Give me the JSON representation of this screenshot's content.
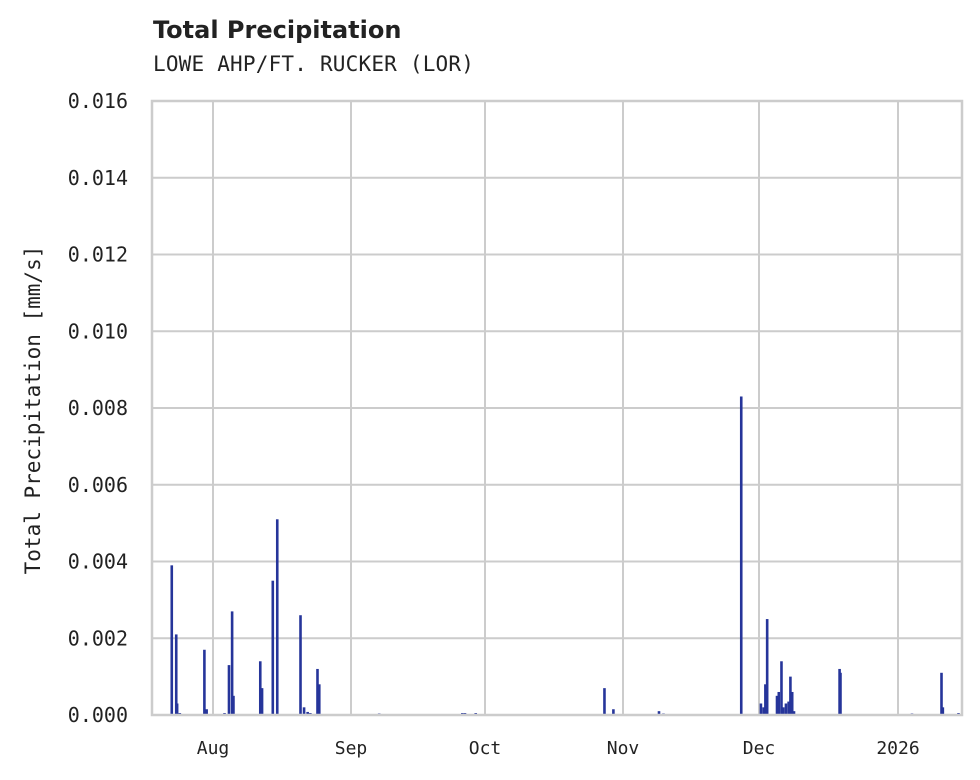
{
  "header": {
    "title": "Total Precipitation",
    "subtitle": "LOWE AHP/FT. RUCKER (LOR)"
  },
  "colors": {
    "bar": "#26359a",
    "grid": "#cccccc",
    "axis": "#cccccc",
    "text": "#222222"
  },
  "chart_data": {
    "type": "bar",
    "title": "Total Precipitation",
    "subtitle": "LOWE AHP/FT. RUCKER (LOR)",
    "xlabel": "",
    "ylabel": "Total Precipitation [mm/s]",
    "ylim": [
      0,
      0.016
    ],
    "yticks": [
      "0.000",
      "0.002",
      "0.004",
      "0.006",
      "0.008",
      "0.010",
      "0.012",
      "0.014",
      "0.016"
    ],
    "xticks": [
      "Aug",
      "Sep",
      "Oct",
      "Nov",
      "Dec",
      "2026"
    ],
    "xrange": [
      "2025-07-18",
      "2026-01-16"
    ],
    "grid": true,
    "legend": null,
    "x_unit": "days since 2025-07-18",
    "points": [
      {
        "x": 4.4,
        "y": 0.0039
      },
      {
        "x": 5.4,
        "y": 0.0021
      },
      {
        "x": 5.6,
        "y": 0.0003
      },
      {
        "x": 6.2,
        "y": 5e-05
      },
      {
        "x": 11.7,
        "y": 0.0017
      },
      {
        "x": 12.2,
        "y": 0.00015
      },
      {
        "x": 16.2,
        "y": 5e-05
      },
      {
        "x": 17.2,
        "y": 0.0013
      },
      {
        "x": 17.9,
        "y": 0.0027
      },
      {
        "x": 18.2,
        "y": 0.0005
      },
      {
        "x": 24.2,
        "y": 0.0014
      },
      {
        "x": 24.6,
        "y": 0.0007
      },
      {
        "x": 27.0,
        "y": 0.0035
      },
      {
        "x": 28.0,
        "y": 0.0051
      },
      {
        "x": 33.2,
        "y": 0.0026
      },
      {
        "x": 34.0,
        "y": 0.0002
      },
      {
        "x": 34.8,
        "y": 8e-05
      },
      {
        "x": 35.4,
        "y": 5e-05
      },
      {
        "x": 37.0,
        "y": 0.0012
      },
      {
        "x": 37.4,
        "y": 0.0008
      },
      {
        "x": 50.8,
        "y": 4e-05
      },
      {
        "x": 69.4,
        "y": 5e-05
      },
      {
        "x": 70.0,
        "y": 5e-05
      },
      {
        "x": 72.4,
        "y": 5e-05
      },
      {
        "x": 101.2,
        "y": 0.0007
      },
      {
        "x": 103.2,
        "y": 0.00015
      },
      {
        "x": 113.4,
        "y": 0.0001
      },
      {
        "x": 114.4,
        "y": 4e-05
      },
      {
        "x": 131.8,
        "y": 0.0083
      },
      {
        "x": 136.2,
        "y": 0.0003
      },
      {
        "x": 136.8,
        "y": 0.0002
      },
      {
        "x": 137.2,
        "y": 0.0008
      },
      {
        "x": 137.6,
        "y": 0.0025
      },
      {
        "x": 139.8,
        "y": 0.0005
      },
      {
        "x": 140.2,
        "y": 0.0006
      },
      {
        "x": 140.8,
        "y": 0.0014
      },
      {
        "x": 141.2,
        "y": 0.0002
      },
      {
        "x": 141.8,
        "y": 0.0003
      },
      {
        "x": 142.4,
        "y": 0.00035
      },
      {
        "x": 142.8,
        "y": 0.001
      },
      {
        "x": 143.2,
        "y": 0.0006
      },
      {
        "x": 143.6,
        "y": 0.0001
      },
      {
        "x": 153.8,
        "y": 0.0012
      },
      {
        "x": 154.0,
        "y": 0.0011
      },
      {
        "x": 170.0,
        "y": 4e-05
      },
      {
        "x": 176.6,
        "y": 0.0011
      },
      {
        "x": 176.9,
        "y": 0.0002
      },
      {
        "x": 180.4,
        "y": 5e-05
      }
    ]
  }
}
